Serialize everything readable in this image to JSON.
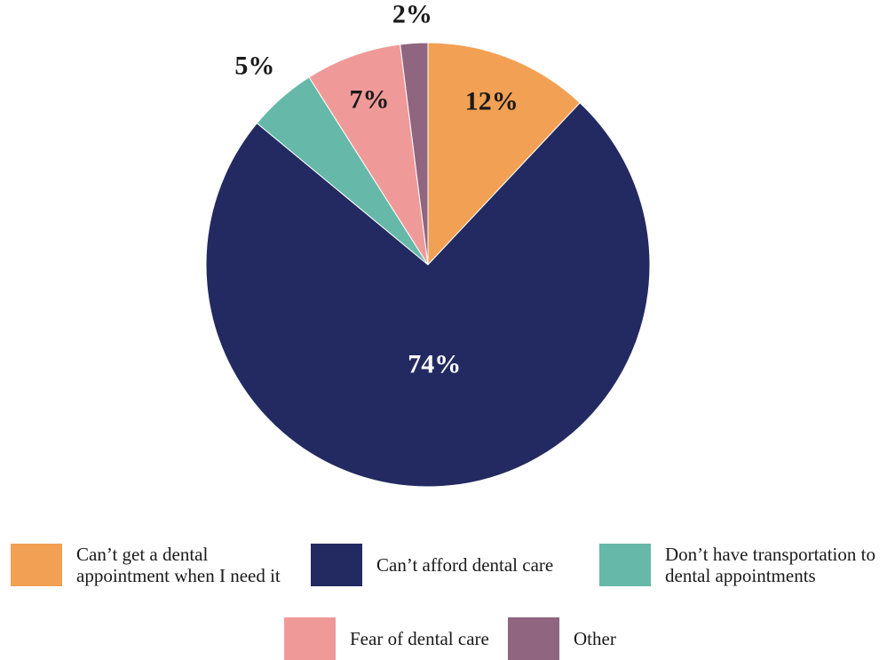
{
  "chart_data": {
    "type": "pie",
    "title": "",
    "slices": [
      {
        "label": "Can’t get a dental\nappointment when I need it",
        "value": 12,
        "display": "12%",
        "color": "#F2A054",
        "label_color": "#1a1a1a"
      },
      {
        "label": "Can’t afford dental care",
        "value": 74,
        "display": "74%",
        "color": "#222A61",
        "label_color": "#ffffff"
      },
      {
        "label": "Don’t have transportation to\ndental appointments",
        "value": 5,
        "display": "5%",
        "color": "#66B8A8",
        "label_color": "#1a1a1a"
      },
      {
        "label": "Fear of dental care",
        "value": 7,
        "display": "7%",
        "color": "#EF9A99",
        "label_color": "#1a1a1a"
      },
      {
        "label": "Other",
        "value": 2,
        "display": "2%",
        "color": "#8F6580",
        "label_color": "#1a1a1a"
      }
    ],
    "legend_position": "bottom"
  }
}
